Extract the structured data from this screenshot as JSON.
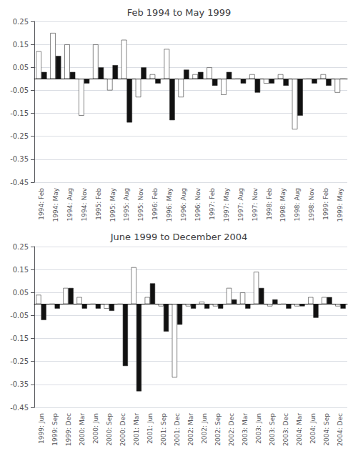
{
  "chart_data": [
    {
      "type": "bar",
      "title": "Feb 1994 to May 1999",
      "categories": [
        "1994: Feb",
        "1994: May",
        "1994: Aug",
        "1994: Nov",
        "1995: Feb",
        "1995: May",
        "1995: Aug",
        "1995: Nov",
        "1996: Feb",
        "1996: May",
        "1996: Aug",
        "1996: Nov",
        "1997: Feb",
        "1997: May",
        "1997: Aug",
        "1997: Nov",
        "1998: Feb",
        "1998: May",
        "1998: Aug",
        "1998: Nov",
        "1999: Feb",
        "1999: May"
      ],
      "series": [
        {
          "color": "#ffffff",
          "values": [
            0.12,
            0.2,
            0.15,
            -0.16,
            0.15,
            -0.05,
            0.17,
            -0.08,
            0.02,
            0.13,
            -0.08,
            0.02,
            0.05,
            -0.07,
            0.0,
            0.02,
            -0.02,
            0.02,
            -0.22,
            0.0,
            0.02,
            -0.06
          ]
        },
        {
          "color": "#111111",
          "values": [
            0.03,
            0.1,
            0.03,
            -0.02,
            0.05,
            0.06,
            -0.19,
            0.05,
            -0.02,
            -0.18,
            0.04,
            0.03,
            -0.03,
            0.03,
            -0.02,
            -0.06,
            -0.02,
            -0.03,
            -0.16,
            -0.02,
            -0.03,
            0.0
          ]
        }
      ],
      "ylim": [
        -0.45,
        0.25
      ],
      "yticks": [
        0.25,
        0.15,
        0.05,
        -0.05,
        -0.15,
        -0.25,
        -0.35,
        -0.45
      ],
      "grid": true
    },
    {
      "type": "bar",
      "title": "June 1999 to December 2004",
      "categories": [
        "1999: Jun",
        "1999: Sep",
        "1999: Dec",
        "2000: Mar",
        "2000: Jun",
        "2000: Sep",
        "2000: Dec",
        "2001: Mar",
        "2001: Jun",
        "2001: Sep",
        "2001: Dec",
        "2002: Mar",
        "2002: Jun",
        "2002: Sep",
        "2002: Dec",
        "2003: Mar",
        "2003: Jun",
        "2003: Sep",
        "2003: Dec",
        "2004: Mar",
        "2004: Jun",
        "2004: Sep",
        "2004: Dec"
      ],
      "series": [
        {
          "color": "#ffffff",
          "values": [
            0.04,
            0.0,
            0.07,
            0.03,
            0.0,
            -0.02,
            0.0,
            0.16,
            0.03,
            -0.01,
            -0.32,
            -0.01,
            0.01,
            -0.01,
            0.07,
            0.05,
            0.14,
            -0.01,
            0.0,
            -0.01,
            0.03,
            0.03,
            -0.01
          ]
        },
        {
          "color": "#111111",
          "values": [
            -0.07,
            -0.02,
            0.07,
            -0.02,
            -0.02,
            -0.03,
            -0.27,
            -0.38,
            0.09,
            -0.12,
            -0.09,
            -0.02,
            -0.02,
            -0.02,
            0.02,
            -0.02,
            0.07,
            0.02,
            -0.02,
            -0.01,
            -0.06,
            0.03,
            -0.02
          ]
        }
      ],
      "ylim": [
        -0.45,
        0.25
      ],
      "yticks": [
        0.25,
        0.15,
        0.05,
        -0.05,
        -0.15,
        -0.25,
        -0.35,
        -0.45
      ],
      "grid": true
    }
  ]
}
